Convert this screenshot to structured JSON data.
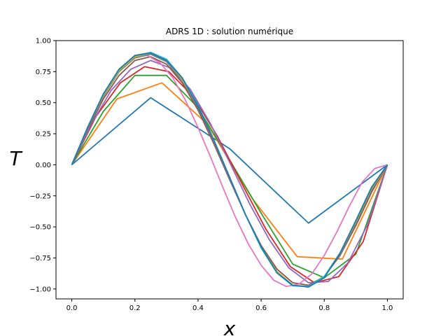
{
  "chart_data": {
    "type": "line",
    "title": "ADRS 1D : solution numérique",
    "xlabel": "x",
    "ylabel": "T",
    "xlim": [
      -0.05,
      1.05
    ],
    "ylim": [
      -1.08,
      1.0
    ],
    "xticks": [
      0.0,
      0.2,
      0.4,
      0.6,
      0.8,
      1.0
    ],
    "xtick_labels": [
      "0.0",
      "0.2",
      "0.4",
      "0.6",
      "0.8",
      "1.0"
    ],
    "yticks": [
      1.0,
      0.75,
      0.5,
      0.25,
      0.0,
      -0.25,
      -0.5,
      -0.75,
      -1.0
    ],
    "ytick_labels": [
      "1.00",
      "0.75",
      "0.50",
      "0.25",
      "0.00",
      "−0.25",
      "−0.50",
      "−0.75",
      "−1.00"
    ],
    "grid": false,
    "series": [
      {
        "color": "#1f77b4",
        "x": [
          0,
          0.25,
          0.5,
          0.75,
          1.0
        ],
        "y": [
          0,
          0.54,
          0.13,
          -0.47,
          0
        ]
      },
      {
        "color": "#ff7f0e",
        "x": [
          0,
          0.1429,
          0.2857,
          0.4286,
          0.5714,
          0.7143,
          0.8571,
          1.0
        ],
        "y": [
          0,
          0.53,
          0.66,
          0.33,
          -0.27,
          -0.74,
          -0.76,
          0
        ]
      },
      {
        "color": "#2ca02c",
        "x": [
          0,
          0.1,
          0.2,
          0.3,
          0.4,
          0.5,
          0.6,
          0.7,
          0.8,
          0.9,
          1.0
        ],
        "y": [
          0,
          0.43,
          0.72,
          0.72,
          0.46,
          0.04,
          -0.39,
          -0.8,
          -0.91,
          -0.72,
          0
        ]
      },
      {
        "color": "#d62728",
        "x": [
          0,
          0.0769,
          0.1538,
          0.2308,
          0.3077,
          0.3846,
          0.4615,
          0.5385,
          0.6154,
          0.6923,
          0.7692,
          0.8462,
          0.9231,
          1.0
        ],
        "y": [
          0,
          0.39,
          0.66,
          0.79,
          0.75,
          0.55,
          0.23,
          -0.15,
          -0.52,
          -0.82,
          -0.95,
          -0.9,
          -0.62,
          0
        ]
      },
      {
        "color": "#9467bd",
        "x": [
          0,
          0.0625,
          0.125,
          0.1875,
          0.25,
          0.3125,
          0.375,
          0.4375,
          0.5,
          0.5625,
          0.625,
          0.6875,
          0.75,
          0.8125,
          0.875,
          0.9375,
          1.0
        ],
        "y": [
          0,
          0.33,
          0.6,
          0.77,
          0.84,
          0.78,
          0.61,
          0.34,
          0.02,
          -0.31,
          -0.6,
          -0.83,
          -0.95,
          -0.94,
          -0.79,
          -0.48,
          0
        ]
      },
      {
        "color": "#8c564b",
        "x": [
          0,
          0.05,
          0.1,
          0.15,
          0.2,
          0.25,
          0.3,
          0.35,
          0.4,
          0.45,
          0.5,
          0.55,
          0.6,
          0.65,
          0.7,
          0.75,
          0.8,
          0.85,
          0.9,
          0.95,
          1.0
        ],
        "y": [
          0,
          0.28,
          0.53,
          0.72,
          0.84,
          0.87,
          0.81,
          0.66,
          0.44,
          0.17,
          -0.12,
          -0.4,
          -0.65,
          -0.84,
          -0.95,
          -0.97,
          -0.9,
          -0.73,
          -0.49,
          -0.22,
          0
        ]
      },
      {
        "color": "#e377c2",
        "x": [
          0,
          0.04,
          0.08,
          0.12,
          0.16,
          0.2,
          0.24,
          0.28,
          0.32,
          0.36,
          0.4,
          0.44,
          0.48,
          0.52,
          0.56,
          0.6,
          0.64,
          0.68,
          0.72,
          0.76,
          0.8,
          0.84,
          0.88,
          0.92,
          0.96,
          1.0
        ],
        "y": [
          0,
          0.23,
          0.46,
          0.65,
          0.79,
          0.87,
          0.88,
          0.82,
          0.7,
          0.52,
          0.3,
          0.06,
          -0.19,
          -0.43,
          -0.64,
          -0.81,
          -0.93,
          -0.98,
          -0.96,
          -0.88,
          -0.73,
          -0.54,
          -0.33,
          -0.14,
          -0.03,
          0
        ]
      },
      {
        "color": "#7f7f7f",
        "x": [
          0,
          0.05,
          0.1,
          0.15,
          0.2,
          0.25,
          0.3,
          0.35,
          0.4,
          0.45,
          0.5,
          0.55,
          0.6,
          0.65,
          0.7,
          0.75,
          0.8,
          0.85,
          0.9,
          0.95,
          1.0
        ],
        "y": [
          0,
          0.29,
          0.55,
          0.75,
          0.86,
          0.89,
          0.83,
          0.68,
          0.46,
          0.19,
          -0.11,
          -0.4,
          -0.66,
          -0.86,
          -0.97,
          -0.98,
          -0.9,
          -0.72,
          -0.47,
          -0.2,
          0
        ]
      },
      {
        "color": "#bcbd22",
        "x": [
          0,
          0.05,
          0.1,
          0.15,
          0.2,
          0.25,
          0.3,
          0.35,
          0.4,
          0.45,
          0.5,
          0.55,
          0.6,
          0.65,
          0.7,
          0.75,
          0.8,
          0.85,
          0.9,
          0.95,
          1.0
        ],
        "y": [
          0,
          0.3,
          0.56,
          0.76,
          0.87,
          0.9,
          0.84,
          0.69,
          0.47,
          0.2,
          -0.1,
          -0.4,
          -0.66,
          -0.86,
          -0.97,
          -0.98,
          -0.9,
          -0.71,
          -0.46,
          -0.19,
          0
        ]
      },
      {
        "color": "#17becf",
        "x": [
          0,
          0.05,
          0.1,
          0.15,
          0.2,
          0.25,
          0.3,
          0.35,
          0.4,
          0.45,
          0.5,
          0.55,
          0.6,
          0.65,
          0.7,
          0.75,
          0.8,
          0.85,
          0.9,
          0.95,
          1.0
        ],
        "y": [
          0,
          0.3,
          0.57,
          0.77,
          0.88,
          0.905,
          0.85,
          0.7,
          0.48,
          0.2,
          -0.1,
          -0.4,
          -0.67,
          -0.87,
          -0.975,
          -0.98,
          -0.9,
          -0.71,
          -0.45,
          -0.18,
          0
        ]
      },
      {
        "color": "#1f77b4",
        "x": [
          0,
          0.05,
          0.1,
          0.15,
          0.2,
          0.25,
          0.3,
          0.35,
          0.4,
          0.45,
          0.5,
          0.55,
          0.6,
          0.65,
          0.7,
          0.75,
          0.8,
          0.85,
          0.9,
          0.95,
          1.0
        ],
        "y": [
          0,
          0.3,
          0.57,
          0.77,
          0.88,
          0.9,
          0.84,
          0.7,
          0.47,
          0.2,
          -0.1,
          -0.4,
          -0.66,
          -0.87,
          -0.97,
          -0.985,
          -0.91,
          -0.71,
          -0.45,
          -0.18,
          0
        ]
      }
    ]
  }
}
